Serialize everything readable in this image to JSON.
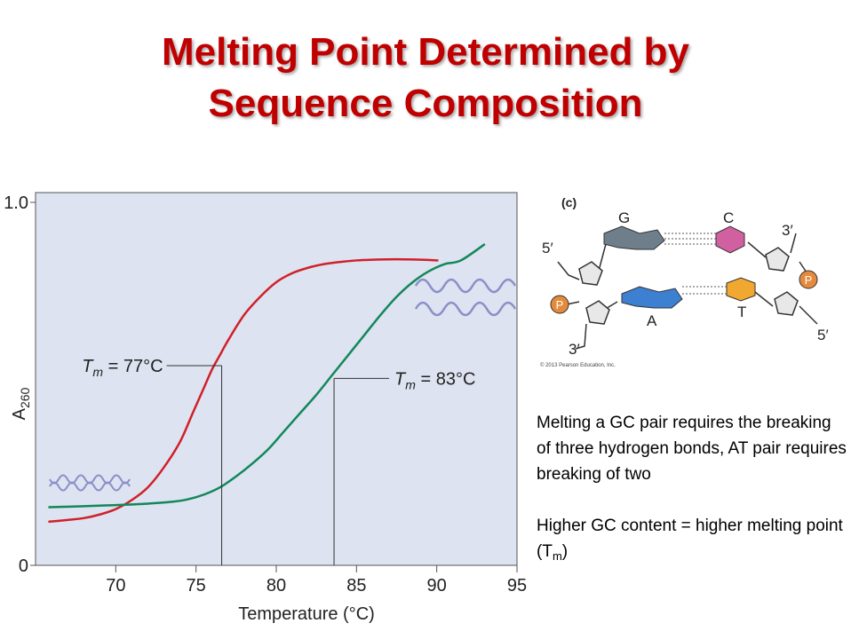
{
  "slide": {
    "title_line1": "Melting Point Determined by",
    "title_line2": "Sequence Composition"
  },
  "chart_data": {
    "type": "line",
    "xlabel": "Temperature (°C)",
    "ylabel_main": "A",
    "ylabel_sub": "260",
    "xlim": [
      65,
      95
    ],
    "ylim": [
      0,
      1.0
    ],
    "x_ticks": [
      70,
      75,
      80,
      85,
      90,
      95
    ],
    "y_ticks": [
      {
        "value": 0,
        "label": "0"
      },
      {
        "value": 1.0,
        "label": "1.0"
      }
    ],
    "grid": false,
    "plot_background": "#dde3f0",
    "series": [
      {
        "color": "#d0202a",
        "x": [
          65.8,
          67,
          68,
          69,
          70,
          71,
          72,
          73,
          74,
          74.8,
          75.5,
          76,
          76.5,
          77,
          78,
          79,
          80,
          81,
          82,
          83,
          84,
          85,
          86,
          87,
          88,
          89,
          90.1
        ],
        "y": [
          0.12,
          0.125,
          0.13,
          0.14,
          0.155,
          0.18,
          0.215,
          0.27,
          0.34,
          0.42,
          0.49,
          0.54,
          0.58,
          0.62,
          0.69,
          0.74,
          0.78,
          0.805,
          0.82,
          0.83,
          0.836,
          0.84,
          0.842,
          0.843,
          0.843,
          0.842,
          0.84
        ]
      },
      {
        "color": "#12875a",
        "x": [
          65.8,
          68,
          70,
          72,
          73.5,
          74.5,
          75.5,
          76.5,
          77.5,
          78.5,
          79.5,
          80.5,
          81.5,
          82.5,
          83.5,
          84.5,
          85.5,
          86.5,
          87.5,
          88.5,
          89.5,
          90.5,
          91.5,
          93
        ],
        "y": [
          0.16,
          0.163,
          0.166,
          0.17,
          0.175,
          0.182,
          0.195,
          0.215,
          0.245,
          0.28,
          0.32,
          0.37,
          0.42,
          0.47,
          0.525,
          0.58,
          0.635,
          0.69,
          0.74,
          0.78,
          0.81,
          0.83,
          0.84,
          0.885
        ]
      }
    ],
    "annotations": [
      {
        "label_main": "T",
        "label_sub": "m",
        "label_rest": " = 77°C",
        "x": 76.6,
        "y": 0.55
      },
      {
        "label_main": "T",
        "label_sub": "m",
        "label_rest": " = 83°C",
        "x": 83.6,
        "y": 0.515
      }
    ]
  },
  "dna_figure": {
    "panel_label": "(c)",
    "bases": {
      "g": "G",
      "c": "C",
      "a": "A",
      "t": "T"
    },
    "ends": {
      "five_top": "5′",
      "three_top": "3′",
      "three_bottom": "3′",
      "five_bottom": "5′"
    },
    "phosphate": "P",
    "copyright": "© 2013 Pearson Education, Inc."
  },
  "notes": {
    "para1": "Melting a GC pair requires the breaking of three hydrogen bonds, AT pair requires breaking of two",
    "para2_prefix": "Higher GC content = higher melting point (T",
    "para2_sub": "m",
    "para2_suffix": ")"
  }
}
